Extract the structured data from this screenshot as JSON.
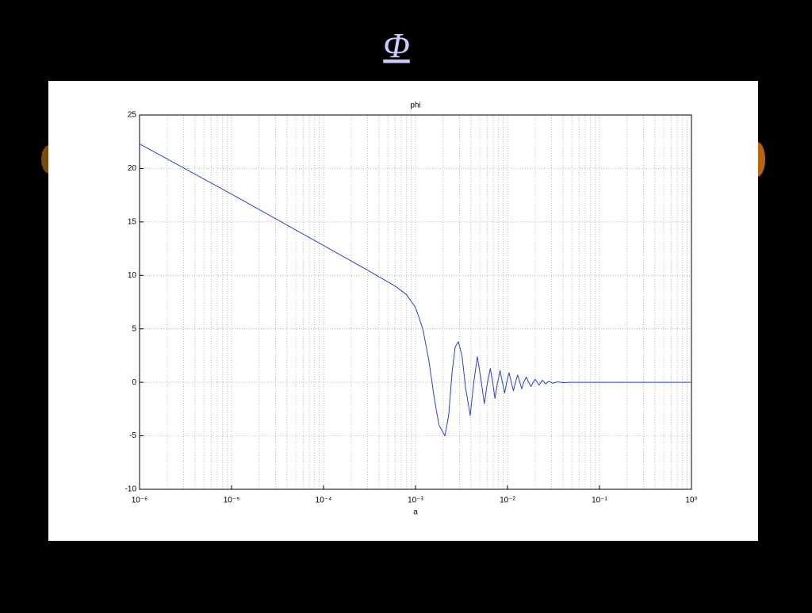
{
  "slide_title": "Φ",
  "chart_data": {
    "type": "line",
    "title": "phi",
    "x_label": "a",
    "x_scale": "log",
    "grid": true,
    "xlim": [
      1e-06,
      1
    ],
    "xticks": [
      {
        "value": 1e-06,
        "label": "10⁻⁶"
      },
      {
        "value": 1e-05,
        "label": "10⁻⁵"
      },
      {
        "value": 0.0001,
        "label": "10⁻⁴"
      },
      {
        "value": 0.001,
        "label": "10⁻³"
      },
      {
        "value": 0.01,
        "label": "10⁻²"
      },
      {
        "value": 0.1,
        "label": "10⁻¹"
      },
      {
        "value": 1,
        "label": "10⁰"
      }
    ],
    "ylim": [
      -10,
      25
    ],
    "yticks": [
      -10,
      -5,
      0,
      5,
      10,
      15,
      20,
      25
    ],
    "x": [
      1e-06,
      1e-05,
      0.0001,
      0.0003,
      0.0006,
      0.0008,
      0.001,
      0.0012,
      0.0014,
      0.0016,
      0.0018,
      0.00209,
      0.0023,
      0.0025,
      0.0027,
      0.00292,
      0.0032,
      0.0035,
      0.00393,
      0.0043,
      0.0047,
      0.0051,
      0.0056,
      0.006,
      0.0065,
      0.0069,
      0.0073,
      0.0078,
      0.0083,
      0.0088,
      0.0093,
      0.0098,
      0.0104,
      0.011,
      0.0116,
      0.0122,
      0.0129,
      0.0136,
      0.0143,
      0.015,
      0.016,
      0.017,
      0.018,
      0.019,
      0.02,
      0.021,
      0.022,
      0.024,
      0.026,
      0.028,
      0.031,
      0.035,
      0.04,
      0.05,
      0.1,
      1
    ],
    "series": [
      {
        "name": "phi",
        "color": "#2a3fd0",
        "values": [
          22.3,
          17.6,
          12.8,
          10.5,
          9.0,
          8.2,
          7.0,
          5.0,
          2.0,
          -1.5,
          -4.0,
          -5.0,
          -3.0,
          1.0,
          3.3,
          3.8,
          2.5,
          -0.5,
          -3.1,
          0.0,
          2.4,
          0.5,
          -2.0,
          -0.2,
          1.3,
          0.0,
          -1.5,
          0.0,
          1.1,
          0.0,
          -1.0,
          0.0,
          0.9,
          0.0,
          -0.8,
          0.0,
          0.7,
          0.0,
          -0.6,
          0.0,
          0.5,
          0.0,
          -0.4,
          0.0,
          0.3,
          0.0,
          -0.25,
          0.2,
          -0.15,
          0.1,
          -0.08,
          0.05,
          -0.03,
          0,
          0,
          0
        ]
      }
    ]
  }
}
